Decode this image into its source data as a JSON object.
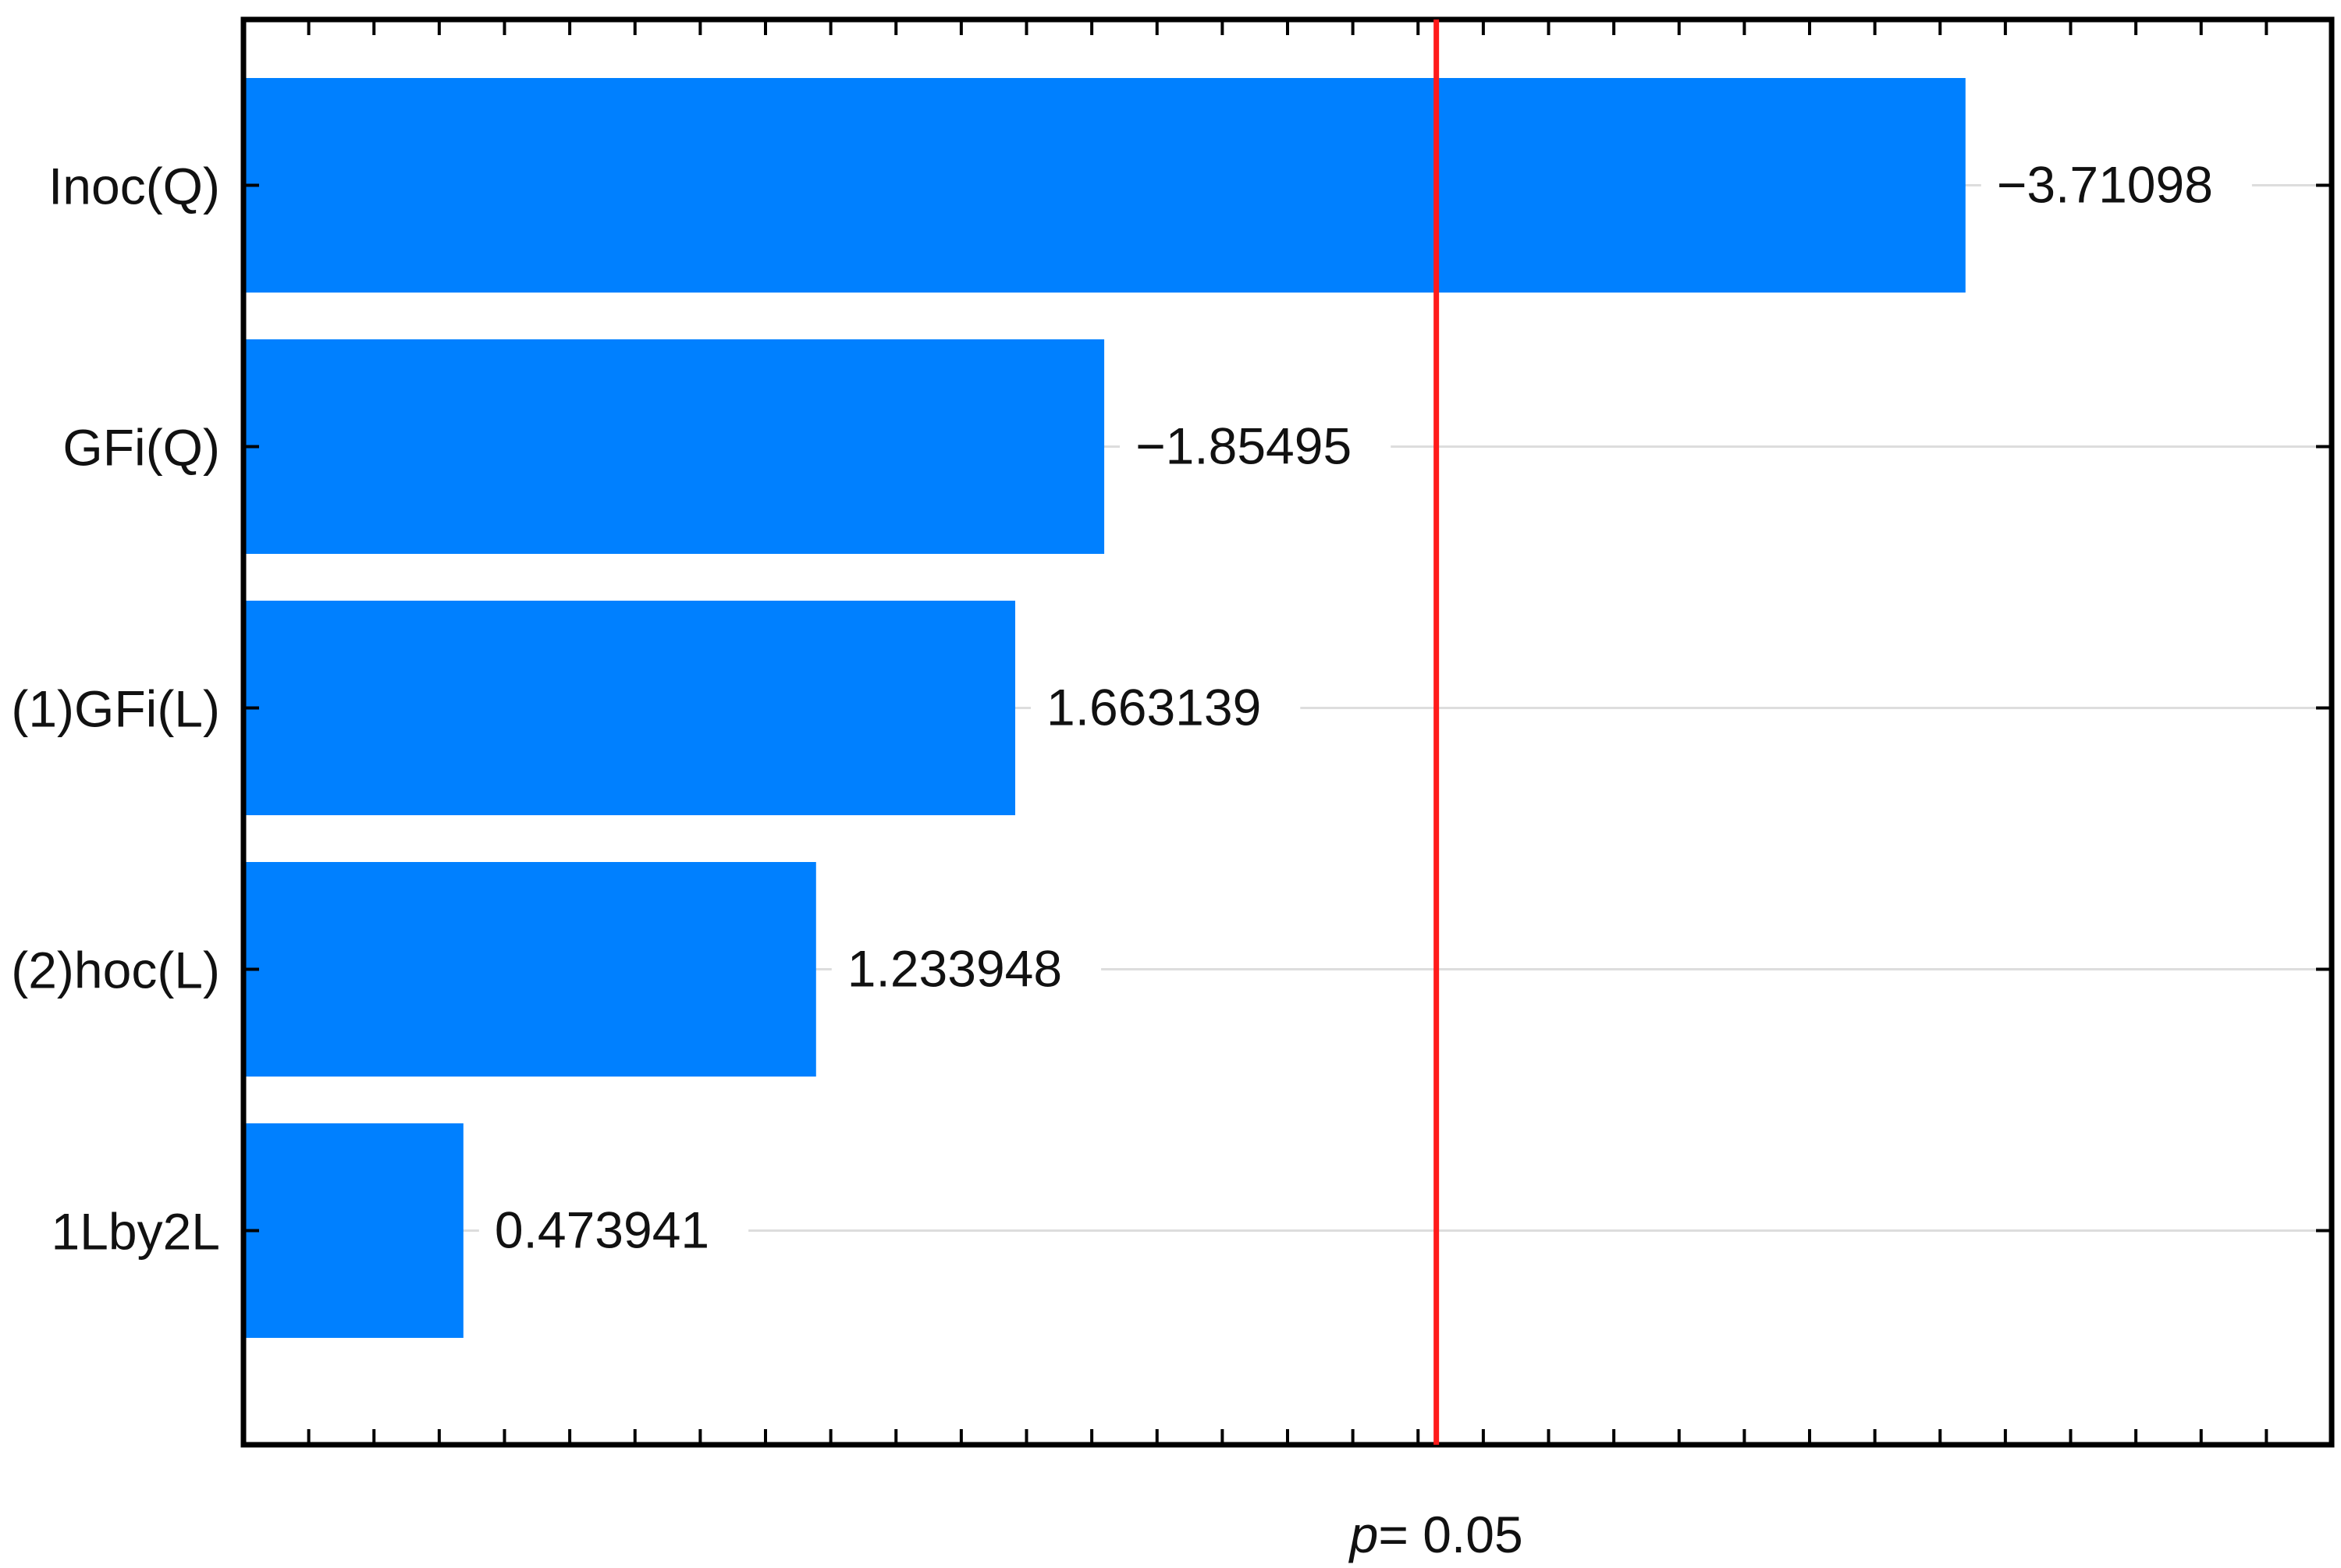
{
  "chart_data": {
    "type": "bar",
    "orientation": "horizontal",
    "categories": [
      "Inoc(Q)",
      "GFi(Q)",
      "(1)GFi(L)",
      "(2)hoc(L)",
      "1Lby2L"
    ],
    "values": [
      -3.71098,
      -1.85495,
      1.663139,
      1.233948,
      0.473941
    ],
    "value_labels": [
      "−3.71098",
      "−1.85495",
      "1.663139",
      "1.233948",
      "0.473941"
    ],
    "bar_lengths_abs": [
      3.71098,
      1.85495,
      1.663139,
      1.233948,
      0.473941
    ],
    "xlim": [
      0,
      4.5
    ],
    "threshold": {
      "value": 2.5706,
      "label_prefix": "p",
      "label_suffix": "= 0.05"
    },
    "grid": true,
    "legend": "none",
    "title": "",
    "xlabel": "",
    "ylabel": ""
  },
  "colors": {
    "bar": "#0080ff",
    "threshold_line": "#ff1a1a",
    "axis": "#000000",
    "grid": "#dddddd",
    "text": "#111111"
  }
}
